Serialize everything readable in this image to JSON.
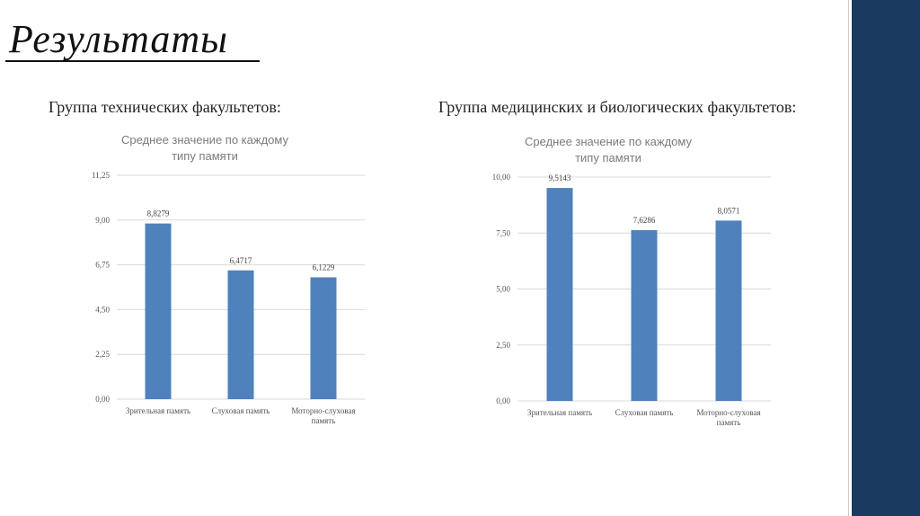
{
  "slide": {
    "title": "Результаты",
    "left_heading": "Группа технических факультетов:",
    "right_heading": "Группа медицинских и биологических факультетов:"
  },
  "colors": {
    "bar": "#4f81bd",
    "side_band": "#1b3a5f"
  },
  "chart_data": [
    {
      "type": "bar",
      "title_lines": [
        "Среднее значение по каждому",
        "типу памяти"
      ],
      "categories": [
        [
          "Зрительная память"
        ],
        [
          "Слуховая память"
        ],
        [
          "Моторно-слуховая",
          "память"
        ]
      ],
      "values": [
        8.8279,
        6.4717,
        6.1229
      ],
      "value_labels": [
        "8,8279",
        "6,4717",
        "6,1229"
      ],
      "yticks": [
        0,
        2.25,
        4.5,
        6.75,
        9,
        11.25
      ],
      "ytick_labels": [
        "0,00",
        "2,25",
        "4,50",
        "6,75",
        "9,00",
        "11,25"
      ],
      "ylim": [
        0,
        11.25
      ],
      "grid": true,
      "legend": false
    },
    {
      "type": "bar",
      "title_lines": [
        "Среднее значение по каждому",
        "типу памяти"
      ],
      "categories": [
        [
          "Зрительная память"
        ],
        [
          "Слуховая память"
        ],
        [
          "Моторно-слуховая",
          "память"
        ]
      ],
      "values": [
        9.5143,
        7.6286,
        8.0571
      ],
      "value_labels": [
        "9,5143",
        "7,6286",
        "8,0571"
      ],
      "yticks": [
        0,
        2.5,
        5,
        7.5,
        10
      ],
      "ytick_labels": [
        "0,00",
        "2,50",
        "5,00",
        "7,50",
        "10,00"
      ],
      "ylim": [
        0,
        10
      ],
      "grid": true,
      "legend": false
    }
  ]
}
